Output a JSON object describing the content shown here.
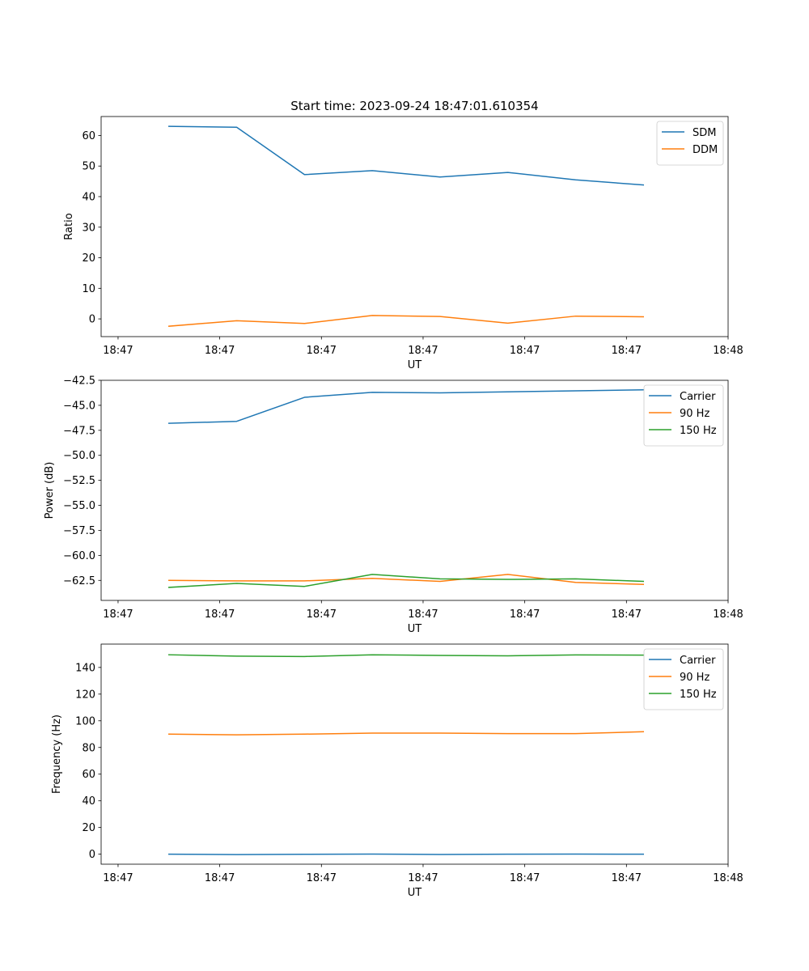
{
  "figure": {
    "title": "Start time: 2023-09-24 18:47:01.610354"
  },
  "chart_data": [
    {
      "type": "line",
      "xlabel": "UT",
      "ylabel": "Ratio",
      "xlim": [
        0,
        9.25
      ],
      "x_ticks": [
        0.25,
        1.75,
        3.25,
        4.75,
        6.25,
        7.75,
        9.25
      ],
      "x_tick_labels": [
        "18:47",
        "18:47",
        "18:47",
        "18:47",
        "18:47",
        "18:47",
        "18:48"
      ],
      "ylim": [
        -5.8,
        66.2
      ],
      "y_ticks": [
        0,
        10,
        20,
        30,
        40,
        50,
        60
      ],
      "y_tick_labels": [
        "0",
        "10",
        "20",
        "30",
        "40",
        "50",
        "60"
      ],
      "legend_position": "top-right",
      "x": [
        1,
        2,
        3,
        4,
        5,
        6,
        7,
        8
      ],
      "series": [
        {
          "name": "SDM",
          "color": "#1f77b4",
          "values": [
            63.0,
            62.7,
            47.2,
            48.5,
            46.4,
            47.9,
            45.5,
            43.8
          ]
        },
        {
          "name": "DDM",
          "color": "#ff7f0e",
          "values": [
            -2.4,
            -0.6,
            -1.5,
            1.1,
            0.8,
            -1.4,
            0.9,
            0.7
          ]
        }
      ]
    },
    {
      "type": "line",
      "xlabel": "UT",
      "ylabel": "Power (dB)",
      "xlim": [
        0,
        9.25
      ],
      "x_ticks": [
        0.25,
        1.75,
        3.25,
        4.75,
        6.25,
        7.75,
        9.25
      ],
      "x_tick_labels": [
        "18:47",
        "18:47",
        "18:47",
        "18:47",
        "18:47",
        "18:47",
        "18:48"
      ],
      "ylim": [
        -64.5,
        -42.5
      ],
      "y_ticks": [
        -62.5,
        -60,
        -57.5,
        -55,
        -52.5,
        -50,
        -47.5,
        -45,
        -42.5
      ],
      "y_tick_labels": [
        "−62.5",
        "−60.0",
        "−57.5",
        "−55.0",
        "−52.5",
        "−50.0",
        "−47.5",
        "−45.0",
        "−42.5"
      ],
      "legend_position": "top-right",
      "x": [
        1,
        2,
        3,
        4,
        5,
        6,
        7,
        8
      ],
      "series": [
        {
          "name": "Carrier",
          "color": "#1f77b4",
          "values": [
            -46.8,
            -46.6,
            -44.2,
            -43.7,
            -43.75,
            -43.65,
            -43.55,
            -43.45
          ]
        },
        {
          "name": "90 Hz",
          "color": "#ff7f0e",
          "values": [
            -62.5,
            -62.55,
            -62.55,
            -62.3,
            -62.6,
            -61.9,
            -62.7,
            -62.9
          ]
        },
        {
          "name": "150 Hz",
          "color": "#2ca02c",
          "values": [
            -63.2,
            -62.8,
            -63.1,
            -61.9,
            -62.35,
            -62.4,
            -62.35,
            -62.6
          ]
        }
      ]
    },
    {
      "type": "line",
      "xlabel": "UT",
      "ylabel": "Frequency (Hz)",
      "xlim": [
        0,
        9.25
      ],
      "x_ticks": [
        0.25,
        1.75,
        3.25,
        4.75,
        6.25,
        7.75,
        9.25
      ],
      "x_tick_labels": [
        "18:47",
        "18:47",
        "18:47",
        "18:47",
        "18:47",
        "18:47",
        "18:48"
      ],
      "ylim": [
        -7.5,
        157.5
      ],
      "y_ticks": [
        0,
        20,
        40,
        60,
        80,
        100,
        120,
        140
      ],
      "y_tick_labels": [
        "0",
        "20",
        "40",
        "60",
        "80",
        "100",
        "120",
        "140"
      ],
      "legend_position": "top-right",
      "x": [
        1,
        2,
        3,
        4,
        5,
        6,
        7,
        8
      ],
      "series": [
        {
          "name": "Carrier",
          "color": "#1f77b4",
          "values": [
            0.0,
            -0.3,
            -0.1,
            0.1,
            -0.2,
            0.0,
            0.1,
            0.0
          ]
        },
        {
          "name": "90 Hz",
          "color": "#ff7f0e",
          "values": [
            90.0,
            89.5,
            90.0,
            90.8,
            90.8,
            90.4,
            90.4,
            91.8
          ]
        },
        {
          "name": "150 Hz",
          "color": "#2ca02c",
          "values": [
            149.5,
            148.5,
            148.2,
            149.5,
            149.0,
            148.7,
            149.4,
            149.2
          ]
        }
      ]
    }
  ]
}
